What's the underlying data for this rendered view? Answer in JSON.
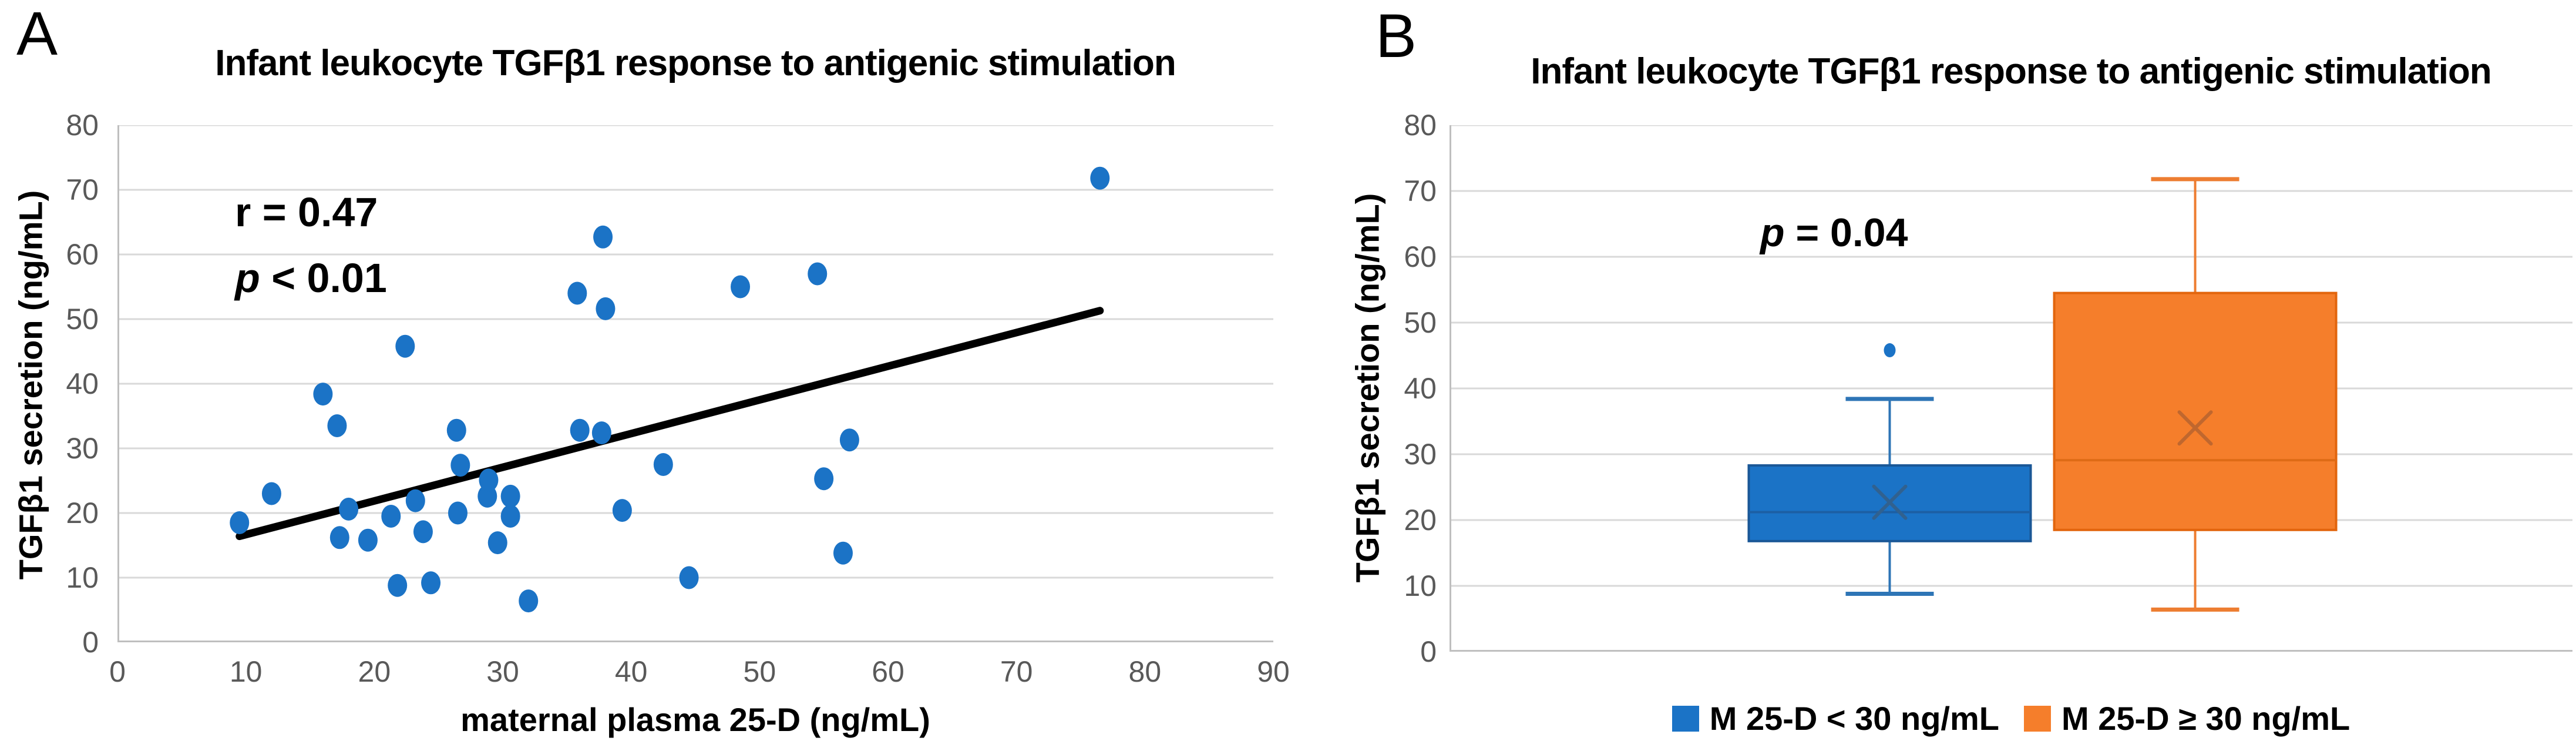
{
  "panels": {
    "a": {
      "label": "A",
      "annotation": {
        "r_line": "r = 0.47",
        "p_var": "p",
        "p_rest": " < 0.01"
      }
    },
    "b": {
      "label": "B",
      "annotation": {
        "p_var": "p",
        "p_rest": " = 0.04"
      },
      "legend": [
        {
          "label": "M 25-D < 30 ng/mL",
          "color": "#1B73C6"
        },
        {
          "label": "M 25-D ≥ 30 ng/mL",
          "color": "#F57E2B"
        }
      ]
    }
  },
  "colors": {
    "gridline": "#D9D9D9",
    "axis": "#BFBFBF",
    "tick_text": "#595959",
    "trend": "#000000",
    "scatter_marker": "#1B73C6"
  },
  "chart_data": [
    {
      "type": "scatter",
      "panel": "A",
      "title": "Infant leukocyte TGFβ1 response to antigenic stimulation",
      "xlabel": "maternal plasma 25-D (ng/mL)",
      "ylabel": "TGFβ1 secretion (ng/mL)",
      "xlim": [
        0,
        90
      ],
      "ylim": [
        0,
        80
      ],
      "xticks": [
        0,
        10,
        20,
        30,
        40,
        50,
        60,
        70,
        80,
        90
      ],
      "yticks": [
        0,
        10,
        20,
        30,
        40,
        50,
        60,
        70,
        80
      ],
      "grid": "horizontal",
      "legend_position": "none",
      "annotations": [
        "r = 0.47",
        "p < 0.01"
      ],
      "points": [
        [
          9.5,
          18.5
        ],
        [
          12,
          23
        ],
        [
          16,
          38.4
        ],
        [
          17.1,
          33.5
        ],
        [
          17.3,
          16.2
        ],
        [
          18,
          20.6
        ],
        [
          19.5,
          15.8
        ],
        [
          21.3,
          19.5
        ],
        [
          21.8,
          8.8
        ],
        [
          22.4,
          45.8
        ],
        [
          23.2,
          21.9
        ],
        [
          23.8,
          17.1
        ],
        [
          24.4,
          9.2
        ],
        [
          26.4,
          32.8
        ],
        [
          26.5,
          20
        ],
        [
          26.7,
          27.4
        ],
        [
          28.8,
          22.6
        ],
        [
          28.9,
          25.1
        ],
        [
          29.6,
          15.4
        ],
        [
          30.6,
          22.6
        ],
        [
          30.6,
          19.5
        ],
        [
          32,
          6.4
        ],
        [
          35.8,
          54
        ],
        [
          36,
          32.8
        ],
        [
          37.7,
          32.4
        ],
        [
          37.8,
          62.7
        ],
        [
          38,
          51.6
        ],
        [
          39.3,
          20.4
        ],
        [
          42.5,
          27.5
        ],
        [
          44.5,
          10
        ],
        [
          48.5,
          55
        ],
        [
          54.5,
          57
        ],
        [
          55,
          25.3
        ],
        [
          56.5,
          13.8
        ],
        [
          57,
          31.3
        ],
        [
          76.5,
          71.8
        ]
      ],
      "trendline": {
        "x": [
          9.5,
          76.5
        ],
        "y": [
          16.4,
          51.3
        ]
      }
    },
    {
      "type": "box",
      "panel": "B",
      "title": "Infant leukocyte TGFβ1 response to antigenic stimulation",
      "ylabel": "TGFβ1 secretion (ng/mL)",
      "ylim": [
        0,
        80
      ],
      "yticks": [
        0,
        10,
        20,
        30,
        40,
        50,
        60,
        70,
        80
      ],
      "grid": "horizontal",
      "legend_position": "bottom",
      "annotations": [
        "p = 0.04"
      ],
      "groups": [
        {
          "name": "M 25-D < 30 ng/mL",
          "fill": "#1B73C6",
          "stroke": "#1A5796",
          "whisker_color": "#2E75B6",
          "median_color": "#1C5FA4",
          "mean_color": "#31618F",
          "whisker_low": 8.8,
          "q1": 16.8,
          "median": 21.2,
          "mean": 22.7,
          "q3": 28.3,
          "whisker_high": 38.4,
          "outliers": [
            45.8
          ]
        },
        {
          "name": "M 25-D ≥ 30 ng/mL",
          "fill": "#F57E2B",
          "stroke": "#E2650D",
          "whisker_color": "#ED7D31",
          "median_color": "#DE6B16",
          "mean_color": "#C0672E",
          "whisker_low": 6.4,
          "q1": 18.5,
          "median": 29.1,
          "mean": 34,
          "q3": 54.5,
          "whisker_high": 71.8,
          "outliers": []
        }
      ]
    }
  ]
}
